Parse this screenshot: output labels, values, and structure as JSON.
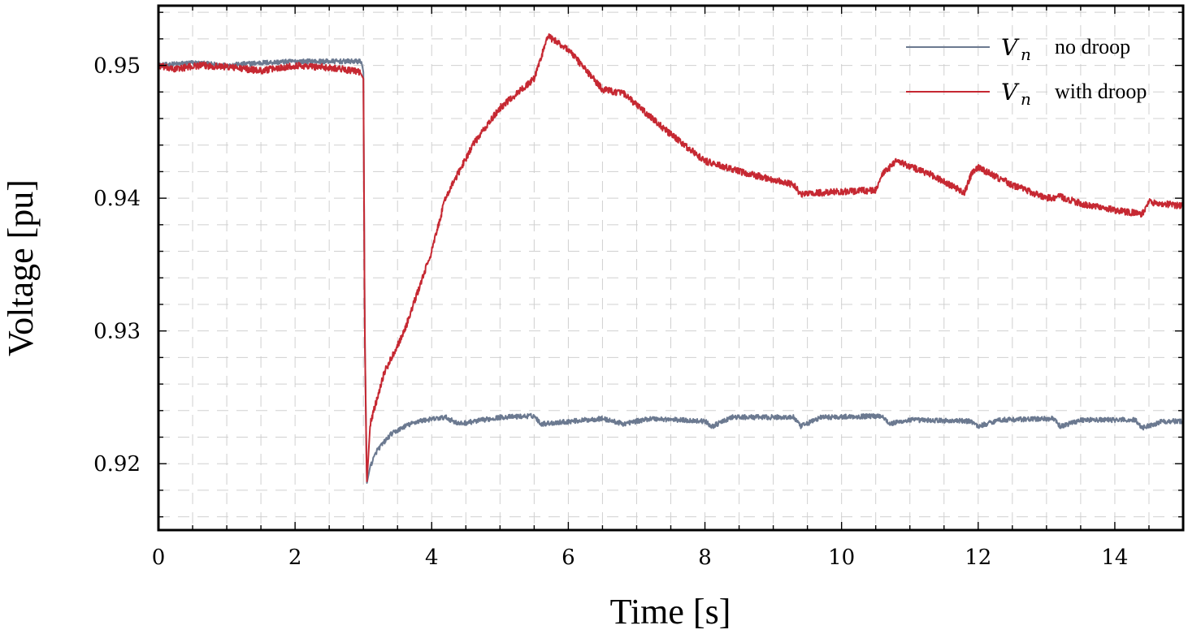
{
  "chart_data": {
    "type": "line",
    "title": "",
    "xlabel": "Time [s]",
    "ylabel": "Voltage [pu]",
    "xlim": [
      0,
      15
    ],
    "ylim": [
      0.915,
      0.9545
    ],
    "xticks": [
      0,
      2,
      4,
      6,
      8,
      10,
      12,
      14
    ],
    "xtick_labels": [
      "0",
      "2",
      "4",
      "6",
      "8",
      "10",
      "12",
      "14"
    ],
    "yticks": [
      0.92,
      0.93,
      0.94,
      0.95
    ],
    "ytick_labels": [
      "0.92",
      "0.93",
      "0.94",
      "0.95"
    ],
    "grid": true,
    "legend_position": "top-right",
    "series": [
      {
        "name": "V_n no droop",
        "legend_var": "V",
        "legend_sub": "n",
        "legend_text": "no droop",
        "color": "#6b7990",
        "noise": 0.00018,
        "points": [
          [
            0,
            0.95
          ],
          [
            0.5,
            0.9502
          ],
          [
            1.0,
            0.95
          ],
          [
            1.5,
            0.9502
          ],
          [
            2.0,
            0.9503
          ],
          [
            2.5,
            0.9503
          ],
          [
            2.97,
            0.9503
          ],
          [
            3.0,
            0.9495
          ],
          [
            3.02,
            0.93
          ],
          [
            3.05,
            0.9185
          ],
          [
            3.1,
            0.9198
          ],
          [
            3.2,
            0.921
          ],
          [
            3.4,
            0.9222
          ],
          [
            3.6,
            0.9228
          ],
          [
            3.8,
            0.9232
          ],
          [
            4.2,
            0.9235
          ],
          [
            4.4,
            0.923
          ],
          [
            5.0,
            0.9235
          ],
          [
            5.5,
            0.9236
          ],
          [
            5.6,
            0.923
          ],
          [
            6.5,
            0.9234
          ],
          [
            6.8,
            0.923
          ],
          [
            7.2,
            0.9234
          ],
          [
            8.0,
            0.9232
          ],
          [
            8.1,
            0.9228
          ],
          [
            8.4,
            0.9235
          ],
          [
            9.3,
            0.9235
          ],
          [
            9.4,
            0.9228
          ],
          [
            9.7,
            0.9235
          ],
          [
            10.6,
            0.9236
          ],
          [
            10.7,
            0.923
          ],
          [
            11.0,
            0.9233
          ],
          [
            11.9,
            0.9232
          ],
          [
            12.0,
            0.9228
          ],
          [
            12.3,
            0.9233
          ],
          [
            13.1,
            0.9234
          ],
          [
            13.2,
            0.9228
          ],
          [
            13.5,
            0.9233
          ],
          [
            14.3,
            0.9233
          ],
          [
            14.4,
            0.9227
          ],
          [
            14.7,
            0.9232
          ],
          [
            15.0,
            0.9232
          ]
        ]
      },
      {
        "name": "V_n with droop",
        "legend_var": "V",
        "legend_sub": "n",
        "legend_text": "with droop",
        "color": "#c62832",
        "noise": 0.00025,
        "points": [
          [
            0,
            0.95
          ],
          [
            0.2,
            0.9497
          ],
          [
            0.6,
            0.95
          ],
          [
            1.0,
            0.9499
          ],
          [
            1.5,
            0.9496
          ],
          [
            2.0,
            0.95
          ],
          [
            2.6,
            0.9498
          ],
          [
            2.95,
            0.9495
          ],
          [
            3.0,
            0.949
          ],
          [
            3.02,
            0.93
          ],
          [
            3.05,
            0.9185
          ],
          [
            3.1,
            0.923
          ],
          [
            3.3,
            0.9268
          ],
          [
            3.6,
            0.93
          ],
          [
            4.0,
            0.936
          ],
          [
            4.2,
            0.94
          ],
          [
            4.6,
            0.944
          ],
          [
            5.0,
            0.9468
          ],
          [
            5.5,
            0.949
          ],
          [
            5.7,
            0.9522
          ],
          [
            6.0,
            0.9512
          ],
          [
            6.5,
            0.9482
          ],
          [
            6.8,
            0.9479
          ],
          [
            7.5,
            0.9448
          ],
          [
            8.0,
            0.9428
          ],
          [
            8.5,
            0.942
          ],
          [
            9.0,
            0.9414
          ],
          [
            9.3,
            0.941
          ],
          [
            9.4,
            0.9403
          ],
          [
            10.0,
            0.9405
          ],
          [
            10.5,
            0.9406
          ],
          [
            10.6,
            0.9418
          ],
          [
            10.8,
            0.9428
          ],
          [
            11.3,
            0.9418
          ],
          [
            11.8,
            0.9404
          ],
          [
            11.9,
            0.9418
          ],
          [
            12.0,
            0.9423
          ],
          [
            12.5,
            0.941
          ],
          [
            13.0,
            0.94
          ],
          [
            13.2,
            0.9401
          ],
          [
            13.5,
            0.9396
          ],
          [
            14.0,
            0.9391
          ],
          [
            14.4,
            0.9388
          ],
          [
            14.5,
            0.9397
          ],
          [
            15.0,
            0.9394
          ]
        ]
      }
    ]
  }
}
